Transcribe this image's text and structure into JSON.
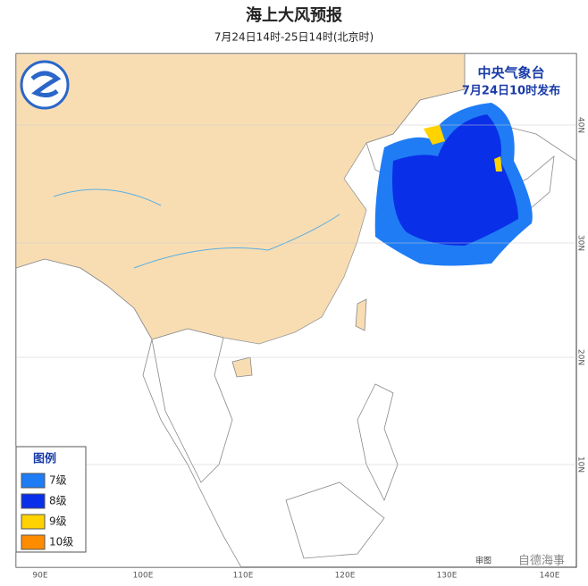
{
  "header": {
    "title": "海上大风预报",
    "subtitle": "7月24日14时-25日14时(北京时)"
  },
  "map": {
    "agency": "中央气象台",
    "issued": "7月24日10时发布",
    "longitude_labels": [
      "90E",
      "100E",
      "110E",
      "120E",
      "130E",
      "140E"
    ],
    "latitude_labels": [
      "40N",
      "30N",
      "20N",
      "10N"
    ],
    "legend": {
      "title": "图例",
      "items": [
        {
          "label": "7级",
          "color": "#1f7cf5"
        },
        {
          "label": "8级",
          "color": "#0a2fe8"
        },
        {
          "label": "9级",
          "color": "#ffd200"
        },
        {
          "label": "10级",
          "color": "#ff8c00"
        }
      ]
    },
    "credit": "审图",
    "watermark": "自德海事"
  }
}
